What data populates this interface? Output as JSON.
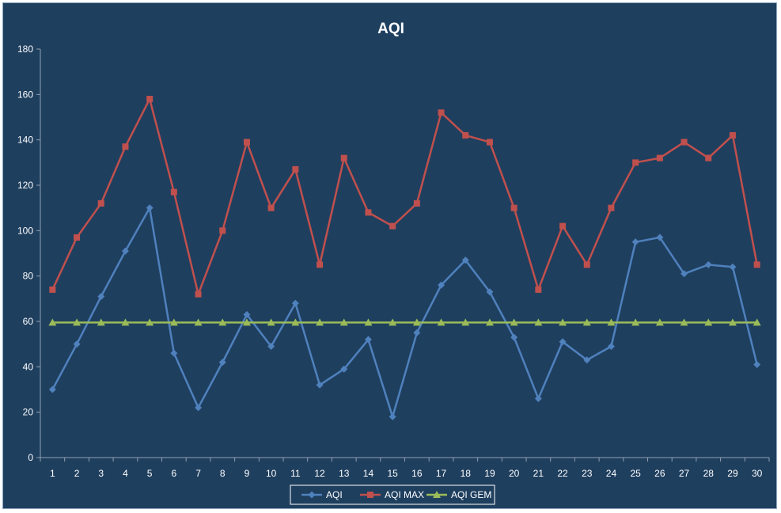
{
  "chart_data": {
    "type": "line",
    "title": "AQI",
    "xlabel": "",
    "ylabel": "",
    "x": [
      1,
      2,
      3,
      4,
      5,
      6,
      7,
      8,
      9,
      10,
      11,
      12,
      13,
      14,
      15,
      16,
      17,
      18,
      19,
      20,
      21,
      22,
      23,
      24,
      25,
      26,
      27,
      28,
      29,
      30
    ],
    "ylim": [
      0,
      180
    ],
    "yticks": [
      0,
      20,
      40,
      60,
      80,
      100,
      120,
      140,
      160,
      180
    ],
    "grid": false,
    "legend": "bottom",
    "series": [
      {
        "name": "AQI",
        "color": "#4f81bd",
        "marker": "diamond",
        "values": [
          30,
          50,
          71,
          91,
          110,
          46,
          22,
          42,
          63,
          49,
          68,
          32,
          39,
          52,
          18,
          55,
          76,
          87,
          73,
          53,
          26,
          51,
          43,
          49,
          95,
          97,
          81,
          85,
          84,
          41
        ]
      },
      {
        "name": "AQI MAX",
        "color": "#c0504d",
        "marker": "square",
        "values": [
          74,
          97,
          112,
          137,
          158,
          117,
          72,
          100,
          139,
          110,
          127,
          85,
          132,
          108,
          102,
          112,
          152,
          142,
          139,
          110,
          74,
          102,
          85,
          110,
          130,
          132,
          139,
          132,
          142,
          85
        ]
      },
      {
        "name": "AQI GEM",
        "color": "#9bbb59",
        "marker": "triangle",
        "values": [
          59.5,
          59.5,
          59.5,
          59.5,
          59.5,
          59.5,
          59.5,
          59.5,
          59.5,
          59.5,
          59.5,
          59.5,
          59.5,
          59.5,
          59.5,
          59.5,
          59.5,
          59.5,
          59.5,
          59.5,
          59.5,
          59.5,
          59.5,
          59.5,
          59.5,
          59.5,
          59.5,
          59.5,
          59.5,
          59.5
        ]
      }
    ]
  }
}
